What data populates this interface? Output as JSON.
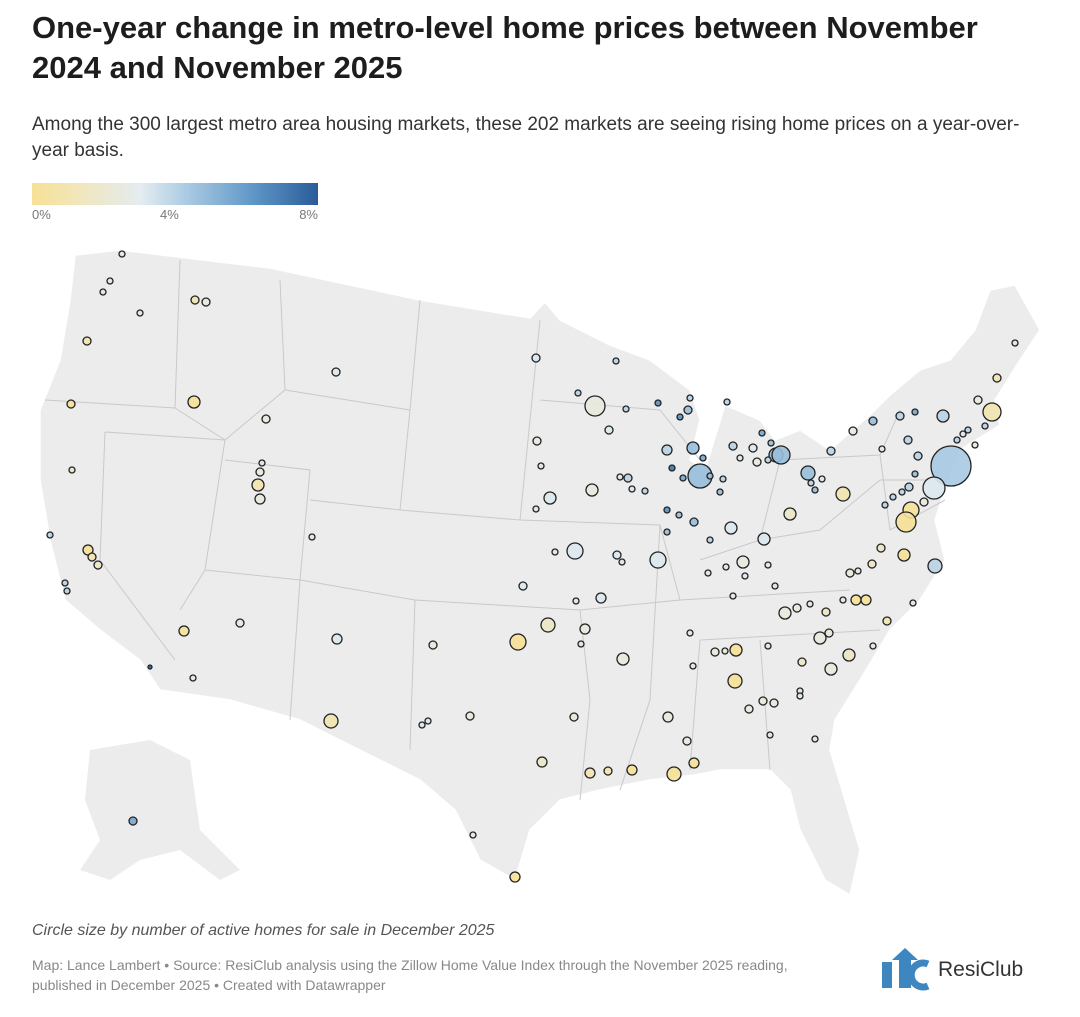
{
  "title": "One-year change in metro-level home prices between November 2024 and November 2025",
  "subtitle": "Among the 300 largest metro area housing markets, these 202 markets are seeing rising home prices on a year-over-year basis.",
  "legend": {
    "ticks": [
      "0%",
      "4%",
      "8%"
    ],
    "colors": {
      "low": "#f6e197",
      "mid": "#e4ecf1",
      "high": "#2a5c99"
    }
  },
  "map": {
    "land_color": "#ececec",
    "border_color": "#c9c9c9"
  },
  "note": "Circle size by number of active homes for sale in December 2025",
  "source": "Map: Lance Lambert • Source: ResiClub analysis using the Zillow Home Value Index through the November 2025 reading, published in December 2025 • Created with Datawrapper",
  "logo": {
    "text": "ResiClub"
  }
}
